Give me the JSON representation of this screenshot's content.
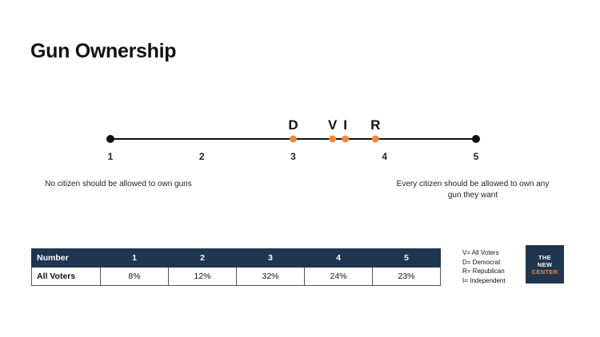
{
  "page": {
    "title": "Gun Ownership"
  },
  "chart_data": {
    "type": "scatter",
    "scale_min": 1,
    "scale_max": 5,
    "ticks": [
      "1",
      "2",
      "3",
      "4",
      "5"
    ],
    "points": [
      {
        "label": "D",
        "value": 3.0
      },
      {
        "label": "V",
        "value": 3.43
      },
      {
        "label": "I",
        "value": 3.57
      },
      {
        "label": "R",
        "value": 3.9
      }
    ],
    "endpoint_labels": {
      "low": "No citizen should be allowed to own guns",
      "high": "Every citizen should be allowed to own any gun they want"
    },
    "colors": {
      "line": "#111111",
      "point": "#f0883c",
      "endpoint": "#111111"
    }
  },
  "table": {
    "headers": [
      "Number",
      "1",
      "2",
      "3",
      "4",
      "5"
    ],
    "rows": [
      {
        "label": "All Voters",
        "values": [
          "8%",
          "12%",
          "32%",
          "24%",
          "23%"
        ]
      }
    ]
  },
  "legend": [
    "V= All Voters",
    "D= Democrat",
    "R= Republican",
    "I= Independent"
  ],
  "logo": {
    "line1": "THE",
    "line2": "NEW",
    "line3": "CENTER",
    "bg": "#1f3550",
    "accent": "#f08a3c"
  }
}
